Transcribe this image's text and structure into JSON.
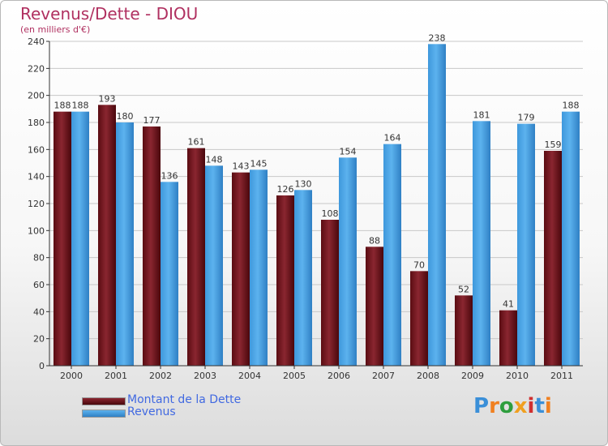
{
  "title": "Revenus/Dette - DIOU",
  "subtitle": "(en milliers d'€)",
  "logo": {
    "letters": [
      "P",
      "r",
      "o",
      "x",
      "i",
      "t",
      "i"
    ],
    "colors": [
      "#3a8fd8",
      "#f08020",
      "#2e9e3e",
      "#f0a020",
      "#d03030",
      "#3a8fd8",
      "#f08020"
    ]
  },
  "colors": {
    "dette": "#7a1a22",
    "revenus": "#4da6e8",
    "title": "#b03060"
  },
  "chart_data": {
    "type": "bar",
    "categories": [
      "2000",
      "2001",
      "2002",
      "2003",
      "2004",
      "2005",
      "2006",
      "2007",
      "2008",
      "2009",
      "2010",
      "2011"
    ],
    "series": [
      {
        "name": "Montant de la Dette",
        "values": [
          188,
          193,
          177,
          161,
          143,
          126,
          108,
          88,
          70,
          52,
          41,
          159
        ]
      },
      {
        "name": "Revenus",
        "values": [
          188,
          180,
          136,
          148,
          145,
          130,
          154,
          164,
          238,
          181,
          179,
          188
        ]
      }
    ],
    "title": "Revenus/Dette - DIOU",
    "subtitle": "(en milliers d'€)",
    "ylim": [
      0,
      240
    ],
    "yticks": [
      0,
      20,
      40,
      60,
      80,
      100,
      120,
      140,
      160,
      180,
      200,
      220,
      240
    ],
    "grid": true,
    "legend": "bottom-left"
  }
}
